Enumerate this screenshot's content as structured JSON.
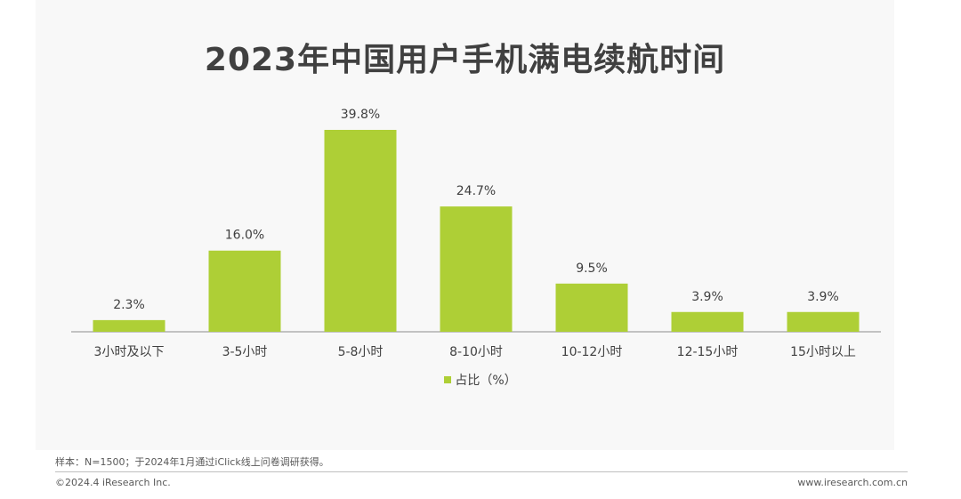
{
  "chart_data": {
    "type": "bar",
    "title": "2023年中国用户手机满电续航时间",
    "categories": [
      "3小时及以下",
      "3-5小时",
      "5-8小时",
      "8-10小时",
      "10-12小时",
      "12-15小时",
      "15小时以上"
    ],
    "series": [
      {
        "name": "占比（%）",
        "values": [
          2.3,
          16.0,
          39.8,
          24.7,
          9.5,
          3.9,
          3.9
        ],
        "labels": [
          "2.3%",
          "16.0%",
          "39.8%",
          "24.7%",
          "9.5%",
          "3.9%",
          "3.9%"
        ],
        "color": "#aecf36"
      }
    ],
    "ylim": [
      0,
      39.8
    ],
    "grid": false,
    "legend_position": "bottom"
  },
  "footer": {
    "note": "样本：N=1500；于2024年1月通过iClick线上问卷调研获得。",
    "copyright": "©2024.4 iResearch Inc.",
    "website": "www.iresearch.com.cn"
  },
  "colors": {
    "bar": "#aecf36",
    "text": "#404040",
    "panel": "#f8f8f8"
  }
}
